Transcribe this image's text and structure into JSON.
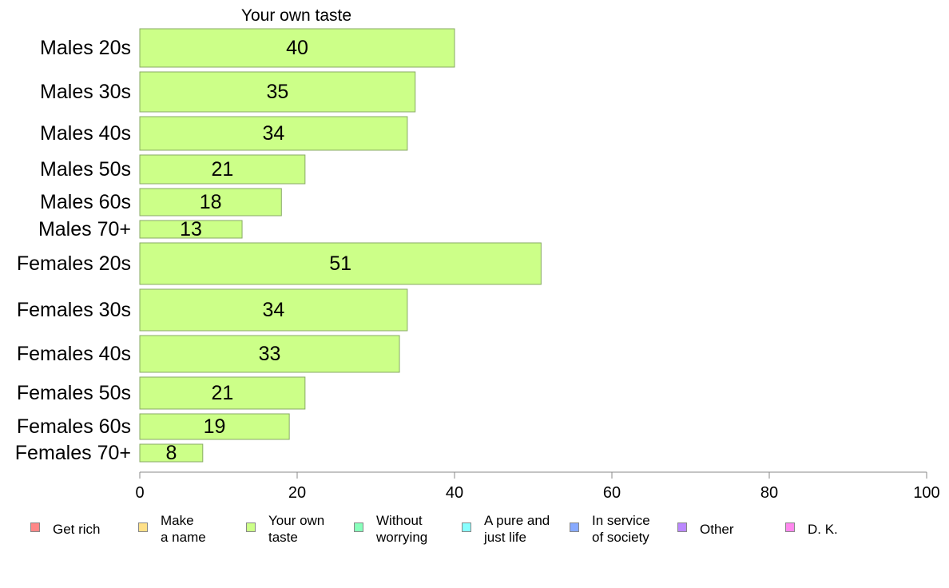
{
  "chart_data": {
    "type": "bar",
    "orientation": "horizontal",
    "title": "Your own taste",
    "categories": [
      "Males 20s",
      "Males 30s",
      "Males 40s",
      "Males 50s",
      "Males 60s",
      "Males 70+",
      "Females 20s",
      "Females 30s",
      "Females 40s",
      "Females 50s",
      "Females 60s",
      "Females 70+"
    ],
    "values": [
      40,
      35,
      34,
      21,
      18,
      13,
      51,
      34,
      33,
      21,
      19,
      8
    ],
    "data_labels": [
      "40",
      "35",
      "34",
      "21",
      "18",
      "13",
      "51",
      "34",
      "33",
      "21",
      "19",
      "8"
    ],
    "bar_thickness": [
      48,
      50,
      42,
      36,
      34,
      22,
      52,
      52,
      46,
      40,
      32,
      22
    ],
    "xlim": [
      0,
      100
    ],
    "xticks": [
      0,
      20,
      40,
      60,
      80,
      100
    ],
    "xtick_labels": [
      "0",
      "20",
      "40",
      "60",
      "80",
      "100"
    ],
    "grid": false,
    "bar_color": "#ccff88",
    "bar_edge_color": "#88aa66",
    "legend": [
      {
        "label": "Get rich",
        "color": "#ff8888"
      },
      {
        "label": "Make\na name",
        "color": "#ffe088"
      },
      {
        "label": "Your own\ntaste",
        "color": "#ccff88"
      },
      {
        "label": "Without\nworrying",
        "color": "#88ffbb"
      },
      {
        "label": "A pure and\njust life",
        "color": "#88ffff"
      },
      {
        "label": "In service\nof society",
        "color": "#88aaff"
      },
      {
        "label": "Other",
        "color": "#bb88ff"
      },
      {
        "label": "D. K.",
        "color": "#ff88ee"
      }
    ],
    "legend_position": "bottom"
  }
}
